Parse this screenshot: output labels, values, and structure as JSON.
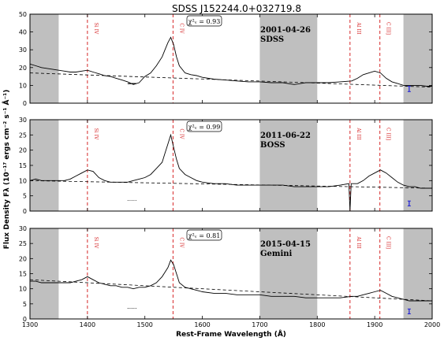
{
  "figure": {
    "title": "SDSS J152244.0+032719.8",
    "xlabel": "Rest-Frame Wavelength (Å)",
    "ylabel": "Flux Density Fλ (10⁻¹⁷ ergs cm⁻² s⁻¹ Å⁻¹)"
  },
  "chart_data": [
    {
      "type": "line",
      "xlim": [
        1300,
        2000
      ],
      "ylim": [
        0,
        50
      ],
      "yticks": [
        0,
        10,
        20,
        30,
        40,
        50
      ],
      "xticks": [
        1300,
        1400,
        1500,
        1600,
        1700,
        1800,
        1900,
        2000
      ],
      "date": "2001-04-26",
      "survey": "SDSS",
      "chi_label": "χ²ᵥ = 0.93",
      "shaded_regions": [
        [
          1300,
          1350
        ],
        [
          1700,
          1800
        ],
        [
          1950,
          2000
        ]
      ],
      "emission_lines": [
        {
          "name": "Si IV",
          "x": 1400
        },
        {
          "name": "C IV",
          "x": 1549
        },
        {
          "name": "Al III",
          "x": 1857
        },
        {
          "name": "C III]",
          "x": 1909
        }
      ],
      "continuum": {
        "x": [
          1300,
          2000
        ],
        "y": [
          17,
          9
        ]
      },
      "spectrum": {
        "x": [
          1300,
          1310,
          1320,
          1330,
          1340,
          1350,
          1360,
          1370,
          1380,
          1390,
          1400,
          1410,
          1420,
          1430,
          1440,
          1450,
          1460,
          1470,
          1480,
          1490,
          1500,
          1510,
          1520,
          1530,
          1535,
          1540,
          1545,
          1550,
          1555,
          1560,
          1570,
          1580,
          1590,
          1600,
          1620,
          1640,
          1660,
          1680,
          1700,
          1720,
          1740,
          1760,
          1780,
          1800,
          1820,
          1840,
          1860,
          1870,
          1880,
          1890,
          1900,
          1910,
          1920,
          1930,
          1940,
          1950,
          1960,
          1970,
          1980,
          1990,
          2000
        ],
        "y": [
          22,
          21,
          20,
          19.5,
          19,
          18.5,
          18,
          17.5,
          17.5,
          18,
          18.5,
          17.5,
          16.5,
          15.5,
          15,
          14,
          13,
          12,
          10.5,
          11.5,
          15,
          17,
          21,
          26,
          30,
          34,
          37,
          33,
          26,
          21,
          17,
          16,
          15.5,
          14.5,
          13.5,
          13,
          12.5,
          12,
          12,
          11.5,
          11.5,
          10.5,
          11.5,
          11.5,
          11.5,
          12,
          12.5,
          14,
          16,
          17,
          18,
          17,
          14,
          12,
          11,
          10,
          10,
          10,
          10,
          9.5,
          9.5
        ]
      },
      "min_error_bar": {
        "x": 1960,
        "y": 8,
        "err": 1.5
      },
      "absorption_marker": {
        "x": [
          1470,
          1485
        ],
        "y": 11
      }
    },
    {
      "type": "line",
      "xlim": [
        1300,
        2000
      ],
      "ylim": [
        0,
        30
      ],
      "yticks": [
        0,
        5,
        10,
        15,
        20,
        25,
        30
      ],
      "xticks": [
        1300,
        1400,
        1500,
        1600,
        1700,
        1800,
        1900,
        2000
      ],
      "date": "2011-06-22",
      "survey": "BOSS",
      "chi_label": "χ²ᵥ = 0.99",
      "shaded_regions": [
        [
          1300,
          1350
        ],
        [
          1700,
          1800
        ],
        [
          1950,
          2000
        ]
      ],
      "emission_lines": [
        {
          "name": "Si IV",
          "x": 1400
        },
        {
          "name": "C IV",
          "x": 1549
        },
        {
          "name": "Al III",
          "x": 1857
        },
        {
          "name": "C III]",
          "x": 1909
        }
      ],
      "continuum": {
        "x": [
          1300,
          2000
        ],
        "y": [
          10,
          7.5
        ]
      },
      "spectrum": {
        "x": [
          1300,
          1310,
          1320,
          1330,
          1340,
          1350,
          1360,
          1370,
          1380,
          1390,
          1400,
          1410,
          1420,
          1430,
          1440,
          1450,
          1460,
          1470,
          1480,
          1490,
          1500,
          1510,
          1520,
          1530,
          1535,
          1540,
          1545,
          1550,
          1555,
          1560,
          1570,
          1580,
          1590,
          1600,
          1620,
          1640,
          1660,
          1680,
          1700,
          1720,
          1740,
          1760,
          1780,
          1800,
          1820,
          1840,
          1855,
          1857,
          1859,
          1870,
          1880,
          1890,
          1900,
          1910,
          1920,
          1930,
          1940,
          1950,
          1960,
          1970,
          1980,
          1990,
          2000
        ],
        "y": [
          10,
          10.5,
          10,
          10,
          10,
          10,
          10,
          10.5,
          11.5,
          12.5,
          13.5,
          13,
          11,
          10,
          9.5,
          9.5,
          9.5,
          9.5,
          10,
          10.5,
          11,
          12,
          14,
          16,
          19,
          22,
          25,
          21,
          17,
          14,
          12,
          11,
          10,
          9.5,
          9,
          9,
          8.5,
          8.5,
          8.5,
          8.5,
          8.5,
          8,
          8,
          8,
          8,
          8.5,
          9,
          0,
          9,
          9,
          10,
          11.5,
          12.5,
          13.5,
          12.5,
          11,
          9.5,
          8.5,
          8,
          8,
          7.5,
          7.5,
          7.5
        ]
      },
      "min_error_bar": {
        "x": 1960,
        "y": 2.5,
        "err": 0.8
      },
      "absorption_marker": {
        "x": [
          1470,
          1485
        ],
        "y": 3.5
      }
    },
    {
      "type": "line",
      "xlim": [
        1300,
        2000
      ],
      "ylim": [
        0,
        30
      ],
      "yticks": [
        0,
        5,
        10,
        15,
        20,
        25,
        30
      ],
      "xticks": [
        1300,
        1400,
        1500,
        1600,
        1700,
        1800,
        1900,
        2000
      ],
      "date": "2015-04-15",
      "survey": "Gemini",
      "chi_label": "χ²ᵥ = 0.81",
      "shaded_regions": [
        [
          1300,
          1350
        ],
        [
          1700,
          1800
        ],
        [
          1950,
          2000
        ]
      ],
      "emission_lines": [
        {
          "name": "Si IV",
          "x": 1400
        },
        {
          "name": "C IV",
          "x": 1549
        },
        {
          "name": "Al III",
          "x": 1857
        },
        {
          "name": "C III]",
          "x": 1909
        }
      ],
      "continuum": {
        "x": [
          1300,
          2000
        ],
        "y": [
          13,
          6
        ]
      },
      "spectrum": {
        "x": [
          1300,
          1310,
          1320,
          1330,
          1340,
          1350,
          1360,
          1370,
          1380,
          1390,
          1400,
          1410,
          1420,
          1430,
          1440,
          1450,
          1460,
          1470,
          1480,
          1490,
          1500,
          1510,
          1520,
          1530,
          1535,
          1540,
          1545,
          1550,
          1555,
          1560,
          1570,
          1580,
          1590,
          1600,
          1620,
          1640,
          1660,
          1680,
          1700,
          1720,
          1740,
          1760,
          1780,
          1800,
          1820,
          1840,
          1860,
          1870,
          1880,
          1890,
          1900,
          1910,
          1920,
          1930,
          1940,
          1950,
          1960,
          1970,
          1980,
          1990,
          2000
        ],
        "y": [
          12.5,
          12.5,
          12,
          12,
          12,
          12,
          12,
          12,
          12.5,
          13,
          14,
          13,
          12,
          11.5,
          11,
          11,
          10.5,
          10.5,
          10,
          10.5,
          10.5,
          11,
          12,
          14,
          15.5,
          17,
          19.5,
          18,
          15,
          12,
          10.5,
          10,
          9.5,
          9,
          8.5,
          8.5,
          8,
          8,
          8,
          7.5,
          7.5,
          7.5,
          7,
          7,
          7,
          7,
          7.5,
          7.5,
          8,
          8.5,
          9,
          9.5,
          8.5,
          7.5,
          7,
          6.5,
          6,
          6,
          6,
          6,
          6
        ]
      },
      "min_error_bar": {
        "x": 1960,
        "y": 2.5,
        "err": 0.8
      },
      "absorption_marker": {
        "x": [
          1470,
          1485
        ],
        "y": 3.5
      }
    }
  ]
}
